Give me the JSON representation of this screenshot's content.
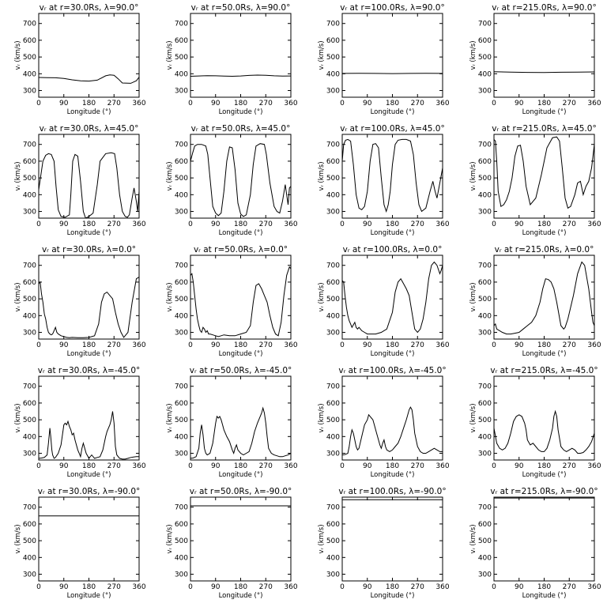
{
  "figure": {
    "rows": 5,
    "cols": 4,
    "xlabel": "Longitude (°)",
    "ylabel": "vᵣ (km/s)",
    "xticks": [
      0,
      90,
      180,
      270,
      360
    ],
    "yticks": [
      300,
      400,
      500,
      600,
      700
    ],
    "xlim": [
      0,
      360
    ],
    "ylim": [
      260,
      760
    ]
  },
  "chart_data": [
    {
      "type": "line",
      "title": "vᵣ at r=30.0Rs, λ=90.0°",
      "x": [
        0,
        30,
        60,
        90,
        120,
        150,
        180,
        210,
        240,
        255,
        270,
        285,
        300,
        330,
        350,
        360
      ],
      "values": [
        378,
        377,
        376,
        372,
        364,
        358,
        356,
        362,
        388,
        393,
        391,
        370,
        345,
        343,
        358,
        380
      ]
    },
    {
      "type": "line",
      "title": "vᵣ at r=50.0Rs, λ=90.0°",
      "x": [
        0,
        30,
        60,
        90,
        120,
        150,
        180,
        210,
        240,
        270,
        300,
        330,
        360
      ],
      "values": [
        385,
        387,
        389,
        388,
        386,
        385,
        387,
        390,
        392,
        391,
        388,
        386,
        387
      ]
    },
    {
      "type": "line",
      "title": "vᵣ at r=100.0Rs, λ=90.0°",
      "x": [
        0,
        60,
        120,
        180,
        240,
        300,
        360
      ],
      "values": [
        402,
        403,
        402,
        401,
        402,
        403,
        402
      ]
    },
    {
      "type": "line",
      "title": "vᵣ at r=215.0Rs, λ=90.0°",
      "x": [
        0,
        60,
        120,
        180,
        240,
        300,
        360
      ],
      "values": [
        412,
        410,
        408,
        407,
        409,
        410,
        411
      ]
    },
    {
      "type": "line",
      "title": "vᵣ at r=30.0Rs, λ=45.0°",
      "x": [
        0,
        8,
        15,
        25,
        35,
        45,
        55,
        62,
        70,
        80,
        95,
        110,
        115,
        122,
        130,
        140,
        150,
        160,
        168,
        180,
        195,
        210,
        220,
        240,
        260,
        272,
        280,
        290,
        300,
        310,
        318,
        325,
        335,
        342,
        350,
        355,
        360
      ],
      "values": [
        430,
        520,
        600,
        635,
        645,
        640,
        600,
        450,
        310,
        270,
        265,
        280,
        400,
        600,
        640,
        630,
        480,
        300,
        260,
        270,
        290,
        460,
        600,
        645,
        650,
        645,
        560,
        400,
        300,
        270,
        265,
        280,
        380,
        440,
        360,
        300,
        420
      ]
    },
    {
      "type": "line",
      "title": "vᵣ at r=50.0Rs, λ=45.0°",
      "x": [
        0,
        8,
        15,
        25,
        40,
        55,
        62,
        70,
        80,
        90,
        100,
        110,
        120,
        130,
        140,
        150,
        160,
        170,
        180,
        190,
        200,
        215,
        225,
        235,
        250,
        265,
        272,
        285,
        300,
        310,
        320,
        330,
        340,
        345,
        350,
        355,
        360
      ],
      "values": [
        600,
        650,
        690,
        700,
        700,
        690,
        640,
        500,
        330,
        290,
        275,
        290,
        420,
        600,
        685,
        680,
        550,
        350,
        285,
        270,
        280,
        400,
        580,
        690,
        705,
        700,
        640,
        470,
        330,
        300,
        290,
        360,
        460,
        400,
        340,
        440,
        450
      ]
    },
    {
      "type": "line",
      "title": "vᵣ at r=100.0Rs, λ=45.0°",
      "x": [
        0,
        5,
        12,
        20,
        30,
        40,
        50,
        60,
        70,
        80,
        90,
        100,
        110,
        120,
        130,
        140,
        150,
        158,
        165,
        172,
        180,
        190,
        200,
        215,
        230,
        245,
        255,
        265,
        275,
        285,
        300,
        315,
        325,
        333,
        340,
        350,
        360
      ],
      "values": [
        600,
        700,
        725,
        730,
        720,
        580,
        400,
        320,
        310,
        330,
        420,
        600,
        700,
        705,
        680,
        500,
        340,
        300,
        340,
        420,
        580,
        700,
        725,
        730,
        730,
        720,
        640,
        470,
        340,
        300,
        320,
        420,
        480,
        420,
        380,
        470,
        560
      ]
    },
    {
      "type": "line",
      "title": "vᵣ at r=215.0Rs, λ=45.0°",
      "x": [
        0,
        5,
        10,
        15,
        25,
        35,
        45,
        55,
        65,
        75,
        85,
        95,
        105,
        115,
        130,
        150,
        170,
        190,
        210,
        225,
        235,
        245,
        255,
        265,
        275,
        290,
        300,
        310,
        320,
        330,
        340,
        350,
        360
      ],
      "values": [
        730,
        720,
        600,
        420,
        330,
        340,
        370,
        420,
        500,
        630,
        690,
        695,
        600,
        450,
        340,
        380,
        520,
        680,
        740,
        745,
        720,
        560,
        380,
        320,
        330,
        400,
        470,
        480,
        400,
        450,
        480,
        560,
        700
      ]
    },
    {
      "type": "line",
      "title": "vᵣ at r=30.0Rs, λ=0.0°",
      "x": [
        0,
        5,
        10,
        15,
        20,
        25,
        30,
        35,
        40,
        45,
        50,
        55,
        60,
        65,
        70,
        75,
        80,
        90,
        100,
        110,
        120,
        140,
        160,
        180,
        200,
        215,
        225,
        235,
        245,
        255,
        265,
        275,
        285,
        295,
        305,
        320,
        335,
        350,
        360
      ],
      "values": [
        590,
        600,
        530,
        480,
        410,
        380,
        330,
        300,
        290,
        285,
        290,
        310,
        330,
        300,
        290,
        285,
        280,
        275,
        270,
        268,
        270,
        268,
        268,
        270,
        280,
        350,
        480,
        530,
        540,
        520,
        500,
        420,
        350,
        300,
        270,
        300,
        480,
        620,
        630
      ]
    },
    {
      "type": "line",
      "title": "vᵣ at r=50.0Rs, λ=0.0°",
      "x": [
        0,
        5,
        10,
        15,
        20,
        25,
        30,
        35,
        40,
        45,
        50,
        55,
        60,
        65,
        70,
        80,
        90,
        100,
        110,
        120,
        140,
        160,
        180,
        200,
        215,
        225,
        235,
        245,
        255,
        265,
        275,
        285,
        295,
        305,
        315,
        325,
        335,
        345,
        355,
        360
      ],
      "values": [
        640,
        650,
        600,
        520,
        440,
        380,
        340,
        310,
        300,
        330,
        320,
        300,
        310,
        290,
        290,
        285,
        280,
        275,
        280,
        285,
        280,
        280,
        290,
        300,
        340,
        480,
        580,
        590,
        560,
        520,
        480,
        400,
        330,
        290,
        280,
        360,
        520,
        640,
        690,
        680
      ]
    },
    {
      "type": "line",
      "title": "vᵣ at r=100.0Rs, λ=0.0°",
      "x": [
        0,
        5,
        10,
        15,
        20,
        25,
        30,
        35,
        40,
        45,
        50,
        55,
        60,
        70,
        80,
        90,
        100,
        120,
        140,
        160,
        180,
        190,
        200,
        210,
        220,
        230,
        240,
        250,
        260,
        270,
        280,
        290,
        300,
        310,
        320,
        330,
        340,
        350,
        355,
        360
      ],
      "values": [
        610,
        600,
        520,
        450,
        400,
        370,
        350,
        330,
        345,
        360,
        330,
        320,
        330,
        310,
        300,
        290,
        290,
        290,
        300,
        320,
        420,
        540,
        600,
        620,
        590,
        560,
        520,
        420,
        320,
        300,
        320,
        380,
        480,
        620,
        700,
        720,
        700,
        650,
        670,
        700
      ]
    },
    {
      "type": "line",
      "title": "vᵣ at r=215.0Rs, λ=0.0°",
      "x": [
        0,
        5,
        10,
        20,
        30,
        45,
        60,
        75,
        90,
        105,
        120,
        135,
        150,
        165,
        175,
        185,
        195,
        205,
        215,
        225,
        240,
        250,
        255,
        265,
        275,
        285,
        300,
        315,
        325,
        340,
        350,
        355,
        360
      ],
      "values": [
        340,
        350,
        320,
        310,
        300,
        290,
        290,
        295,
        300,
        320,
        340,
        360,
        400,
        480,
        560,
        620,
        615,
        600,
        560,
        480,
        340,
        320,
        330,
        380,
        450,
        520,
        650,
        720,
        700,
        560,
        420,
        360,
        340
      ]
    },
    {
      "type": "line",
      "title": "vᵣ at r=30.0Rs, λ=-45.0°",
      "x": [
        0,
        10,
        20,
        30,
        35,
        40,
        43,
        47,
        50,
        55,
        60,
        70,
        80,
        90,
        95,
        100,
        105,
        110,
        115,
        120,
        125,
        130,
        140,
        145,
        150,
        155,
        160,
        170,
        180,
        190,
        200,
        210,
        220,
        230,
        240,
        245,
        250,
        255,
        260,
        265,
        270,
        275,
        280,
        290,
        300,
        310,
        320,
        330,
        340,
        350,
        360
      ],
      "values": [
        270,
        272,
        275,
        290,
        360,
        450,
        400,
        320,
        290,
        270,
        275,
        300,
        350,
        470,
        480,
        470,
        490,
        460,
        440,
        410,
        420,
        380,
        320,
        300,
        280,
        330,
        360,
        300,
        270,
        290,
        270,
        275,
        280,
        320,
        400,
        430,
        450,
        470,
        500,
        550,
        480,
        340,
        290,
        270,
        265,
        265,
        270,
        275,
        278,
        280,
        280
      ]
    },
    {
      "type": "line",
      "title": "vᵣ at r=50.0Rs, λ=-45.0°",
      "x": [
        0,
        10,
        20,
        30,
        35,
        40,
        45,
        50,
        55,
        60,
        70,
        80,
        90,
        95,
        100,
        105,
        110,
        115,
        120,
        125,
        130,
        140,
        150,
        155,
        160,
        165,
        170,
        180,
        190,
        200,
        210,
        220,
        230,
        240,
        250,
        255,
        260,
        265,
        270,
        275,
        280,
        290,
        300,
        310,
        320,
        330,
        340,
        350,
        360
      ],
      "values": [
        270,
        272,
        280,
        330,
        420,
        470,
        410,
        330,
        300,
        290,
        300,
        360,
        480,
        520,
        510,
        520,
        500,
        470,
        440,
        420,
        400,
        370,
        320,
        300,
        330,
        350,
        320,
        300,
        290,
        300,
        310,
        360,
        430,
        480,
        520,
        540,
        570,
        540,
        480,
        400,
        330,
        300,
        290,
        285,
        280,
        280,
        285,
        290,
        300
      ]
    },
    {
      "type": "line",
      "title": "vᵣ at r=100.0Rs, λ=-45.0°",
      "x": [
        0,
        10,
        20,
        25,
        30,
        35,
        40,
        45,
        50,
        55,
        60,
        70,
        80,
        90,
        95,
        100,
        105,
        110,
        115,
        120,
        125,
        130,
        135,
        140,
        145,
        150,
        155,
        160,
        170,
        180,
        190,
        200,
        210,
        220,
        230,
        240,
        245,
        250,
        255,
        260,
        270,
        280,
        290,
        300,
        310,
        320,
        330,
        340,
        350,
        360
      ],
      "values": [
        290,
        292,
        300,
        340,
        400,
        440,
        420,
        380,
        340,
        320,
        330,
        400,
        470,
        500,
        530,
        520,
        510,
        500,
        470,
        440,
        410,
        380,
        350,
        330,
        360,
        380,
        340,
        320,
        310,
        320,
        340,
        360,
        400,
        450,
        500,
        560,
        575,
        560,
        500,
        420,
        340,
        310,
        300,
        300,
        310,
        320,
        330,
        320,
        310,
        310
      ]
    },
    {
      "type": "line",
      "title": "vᵣ at r=215.0Rs, λ=-45.0°",
      "x": [
        0,
        10,
        20,
        30,
        40,
        50,
        60,
        70,
        80,
        90,
        100,
        110,
        115,
        120,
        130,
        140,
        150,
        160,
        170,
        180,
        190,
        200,
        210,
        215,
        220,
        225,
        230,
        240,
        250,
        260,
        270,
        280,
        290,
        300,
        310,
        320,
        330,
        340,
        350,
        360
      ],
      "values": [
        450,
        360,
        330,
        320,
        330,
        360,
        420,
        490,
        520,
        530,
        520,
        480,
        440,
        380,
        350,
        360,
        340,
        320,
        310,
        310,
        330,
        380,
        450,
        520,
        550,
        520,
        440,
        340,
        320,
        310,
        320,
        330,
        320,
        300,
        300,
        305,
        320,
        340,
        370,
        420
      ]
    },
    {
      "type": "line",
      "title": "vᵣ at r=30.0Rs, λ=-90.0°",
      "x": [
        0,
        360
      ],
      "values": [
        648,
        648
      ]
    },
    {
      "type": "line",
      "title": "vᵣ at r=50.0Rs, λ=-90.0°",
      "x": [
        0,
        360
      ],
      "values": [
        708,
        708
      ]
    },
    {
      "type": "line",
      "title": "vᵣ at r=100.0Rs, λ=-90.0°",
      "x": [
        0,
        360
      ],
      "values": [
        745,
        745
      ]
    },
    {
      "type": "line",
      "title": "vᵣ at r=215.0Rs, λ=-90.0°",
      "x": [
        0,
        360
      ],
      "values": [
        755,
        755
      ]
    }
  ]
}
